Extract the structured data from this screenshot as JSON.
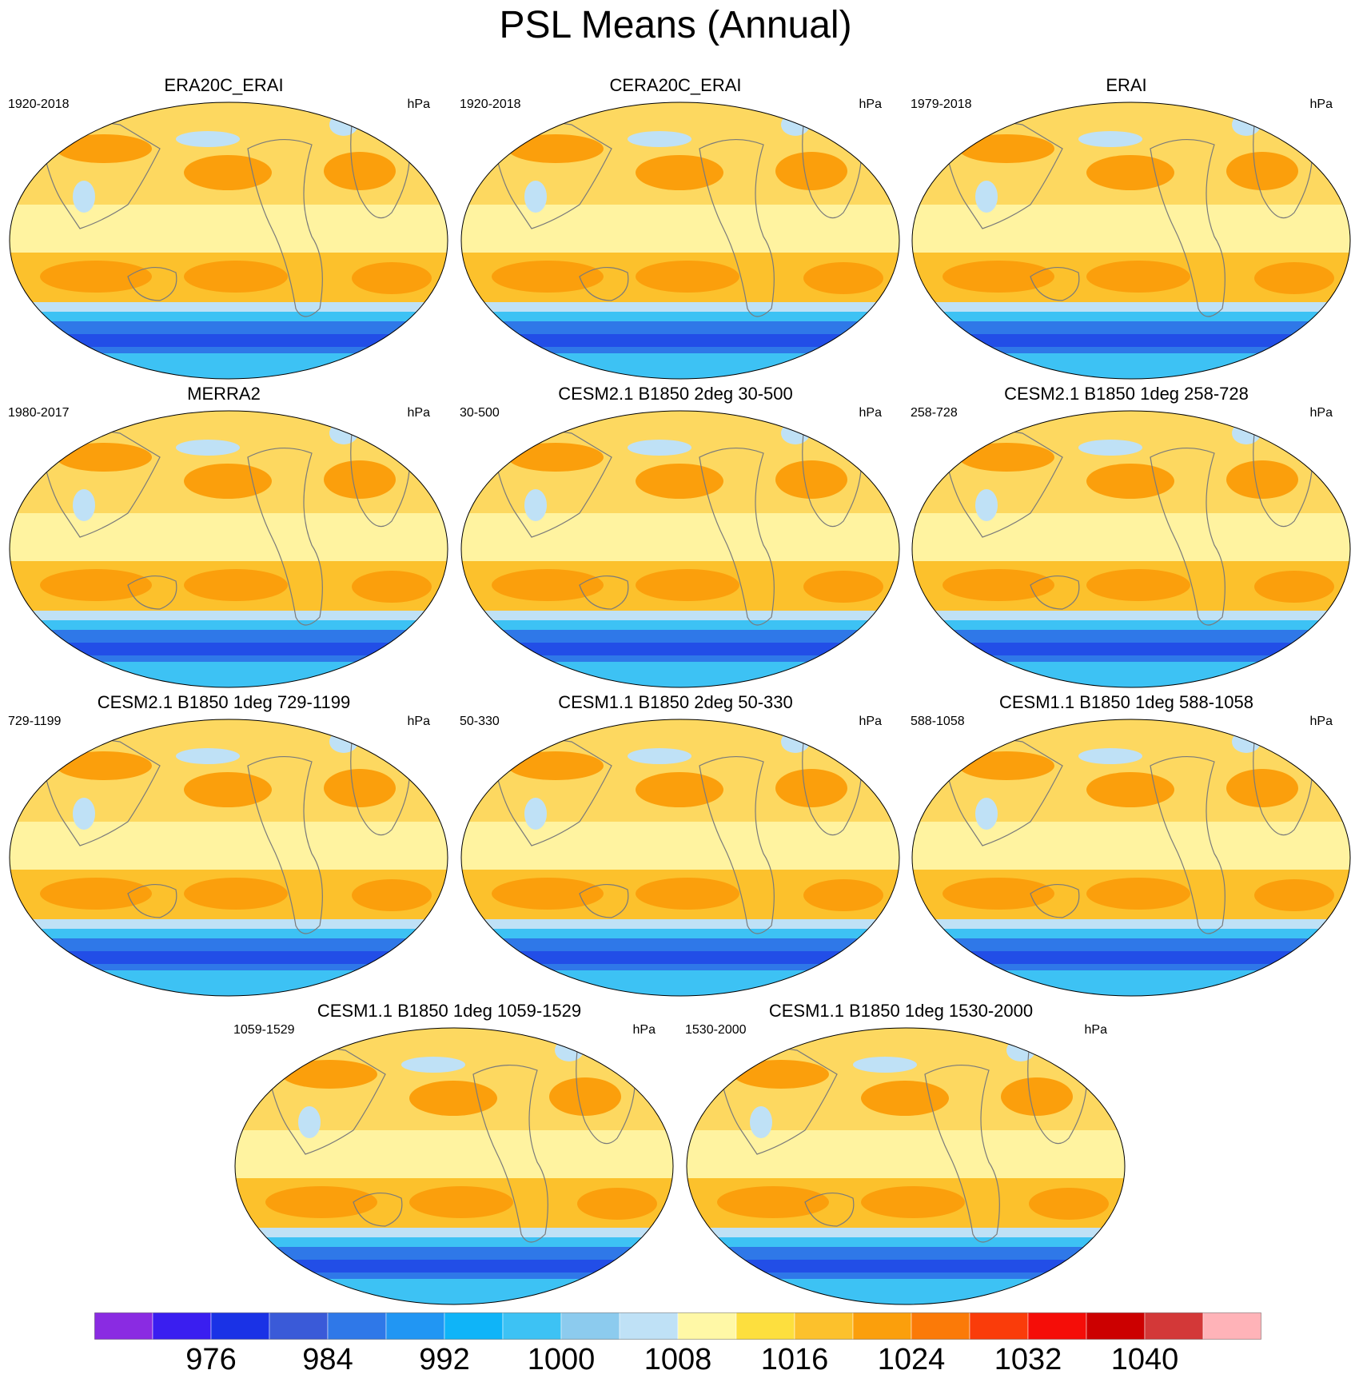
{
  "title": "PSL Means (Annual)",
  "panels": [
    {
      "title": "ERA20C_ERAI",
      "period": "1920-2018",
      "unit": "hPa"
    },
    {
      "title": "CERA20C_ERAI",
      "period": "1920-2018",
      "unit": "hPa"
    },
    {
      "title": "ERAI",
      "period": "1979-2018",
      "unit": "hPa"
    },
    {
      "title": "MERRA2",
      "period": "1980-2017",
      "unit": "hPa"
    },
    {
      "title": "CESM2.1 B1850 2deg 30-500",
      "period": "30-500",
      "unit": "hPa"
    },
    {
      "title": "CESM2.1 B1850 1deg 258-728",
      "period": "258-728",
      "unit": "hPa"
    },
    {
      "title": "CESM2.1 B1850 1deg 729-1199",
      "period": "729-1199",
      "unit": "hPa"
    },
    {
      "title": "CESM1.1 B1850 2deg 50-330",
      "period": "50-330",
      "unit": "hPa"
    },
    {
      "title": "CESM1.1 B1850 1deg 588-1058",
      "period": "588-1058",
      "unit": "hPa"
    },
    {
      "title": "CESM1.1 B1850 1deg 1059-1529",
      "period": "1059-1529",
      "unit": "hPa"
    },
    {
      "title": "CESM1.1 B1850 1deg 1530-2000",
      "period": "1530-2000",
      "unit": "hPa"
    }
  ],
  "colorbar": {
    "colors": [
      "#8a2be2",
      "#3a1ef0",
      "#1a32e6",
      "#3a5ad8",
      "#2f78e8",
      "#2196f3",
      "#0fb4f8",
      "#3dc2f4",
      "#8ccbee",
      "#bfe1f6",
      "#fff8a6",
      "#fddf3e",
      "#fcc12c",
      "#fb9f0c",
      "#fb7a08",
      "#fa3c0a",
      "#f50d08",
      "#cc0000",
      "#d33838",
      "#ffb3b8"
    ],
    "labels": [
      "976",
      "984",
      "992",
      "1000",
      "1008",
      "1016",
      "1024",
      "1032",
      "1040"
    ]
  },
  "map_colors": {
    "ocean_base": "#fff3a0",
    "subtropical_high": "#fcc12c",
    "high_core": "#fb9f0c",
    "low_light": "#bfe1f6",
    "southern_low_1": "#3dc2f4",
    "southern_low_2": "#2f78e8",
    "southern_low_3": "#1a32e6",
    "coast": "#7a7a7a"
  }
}
